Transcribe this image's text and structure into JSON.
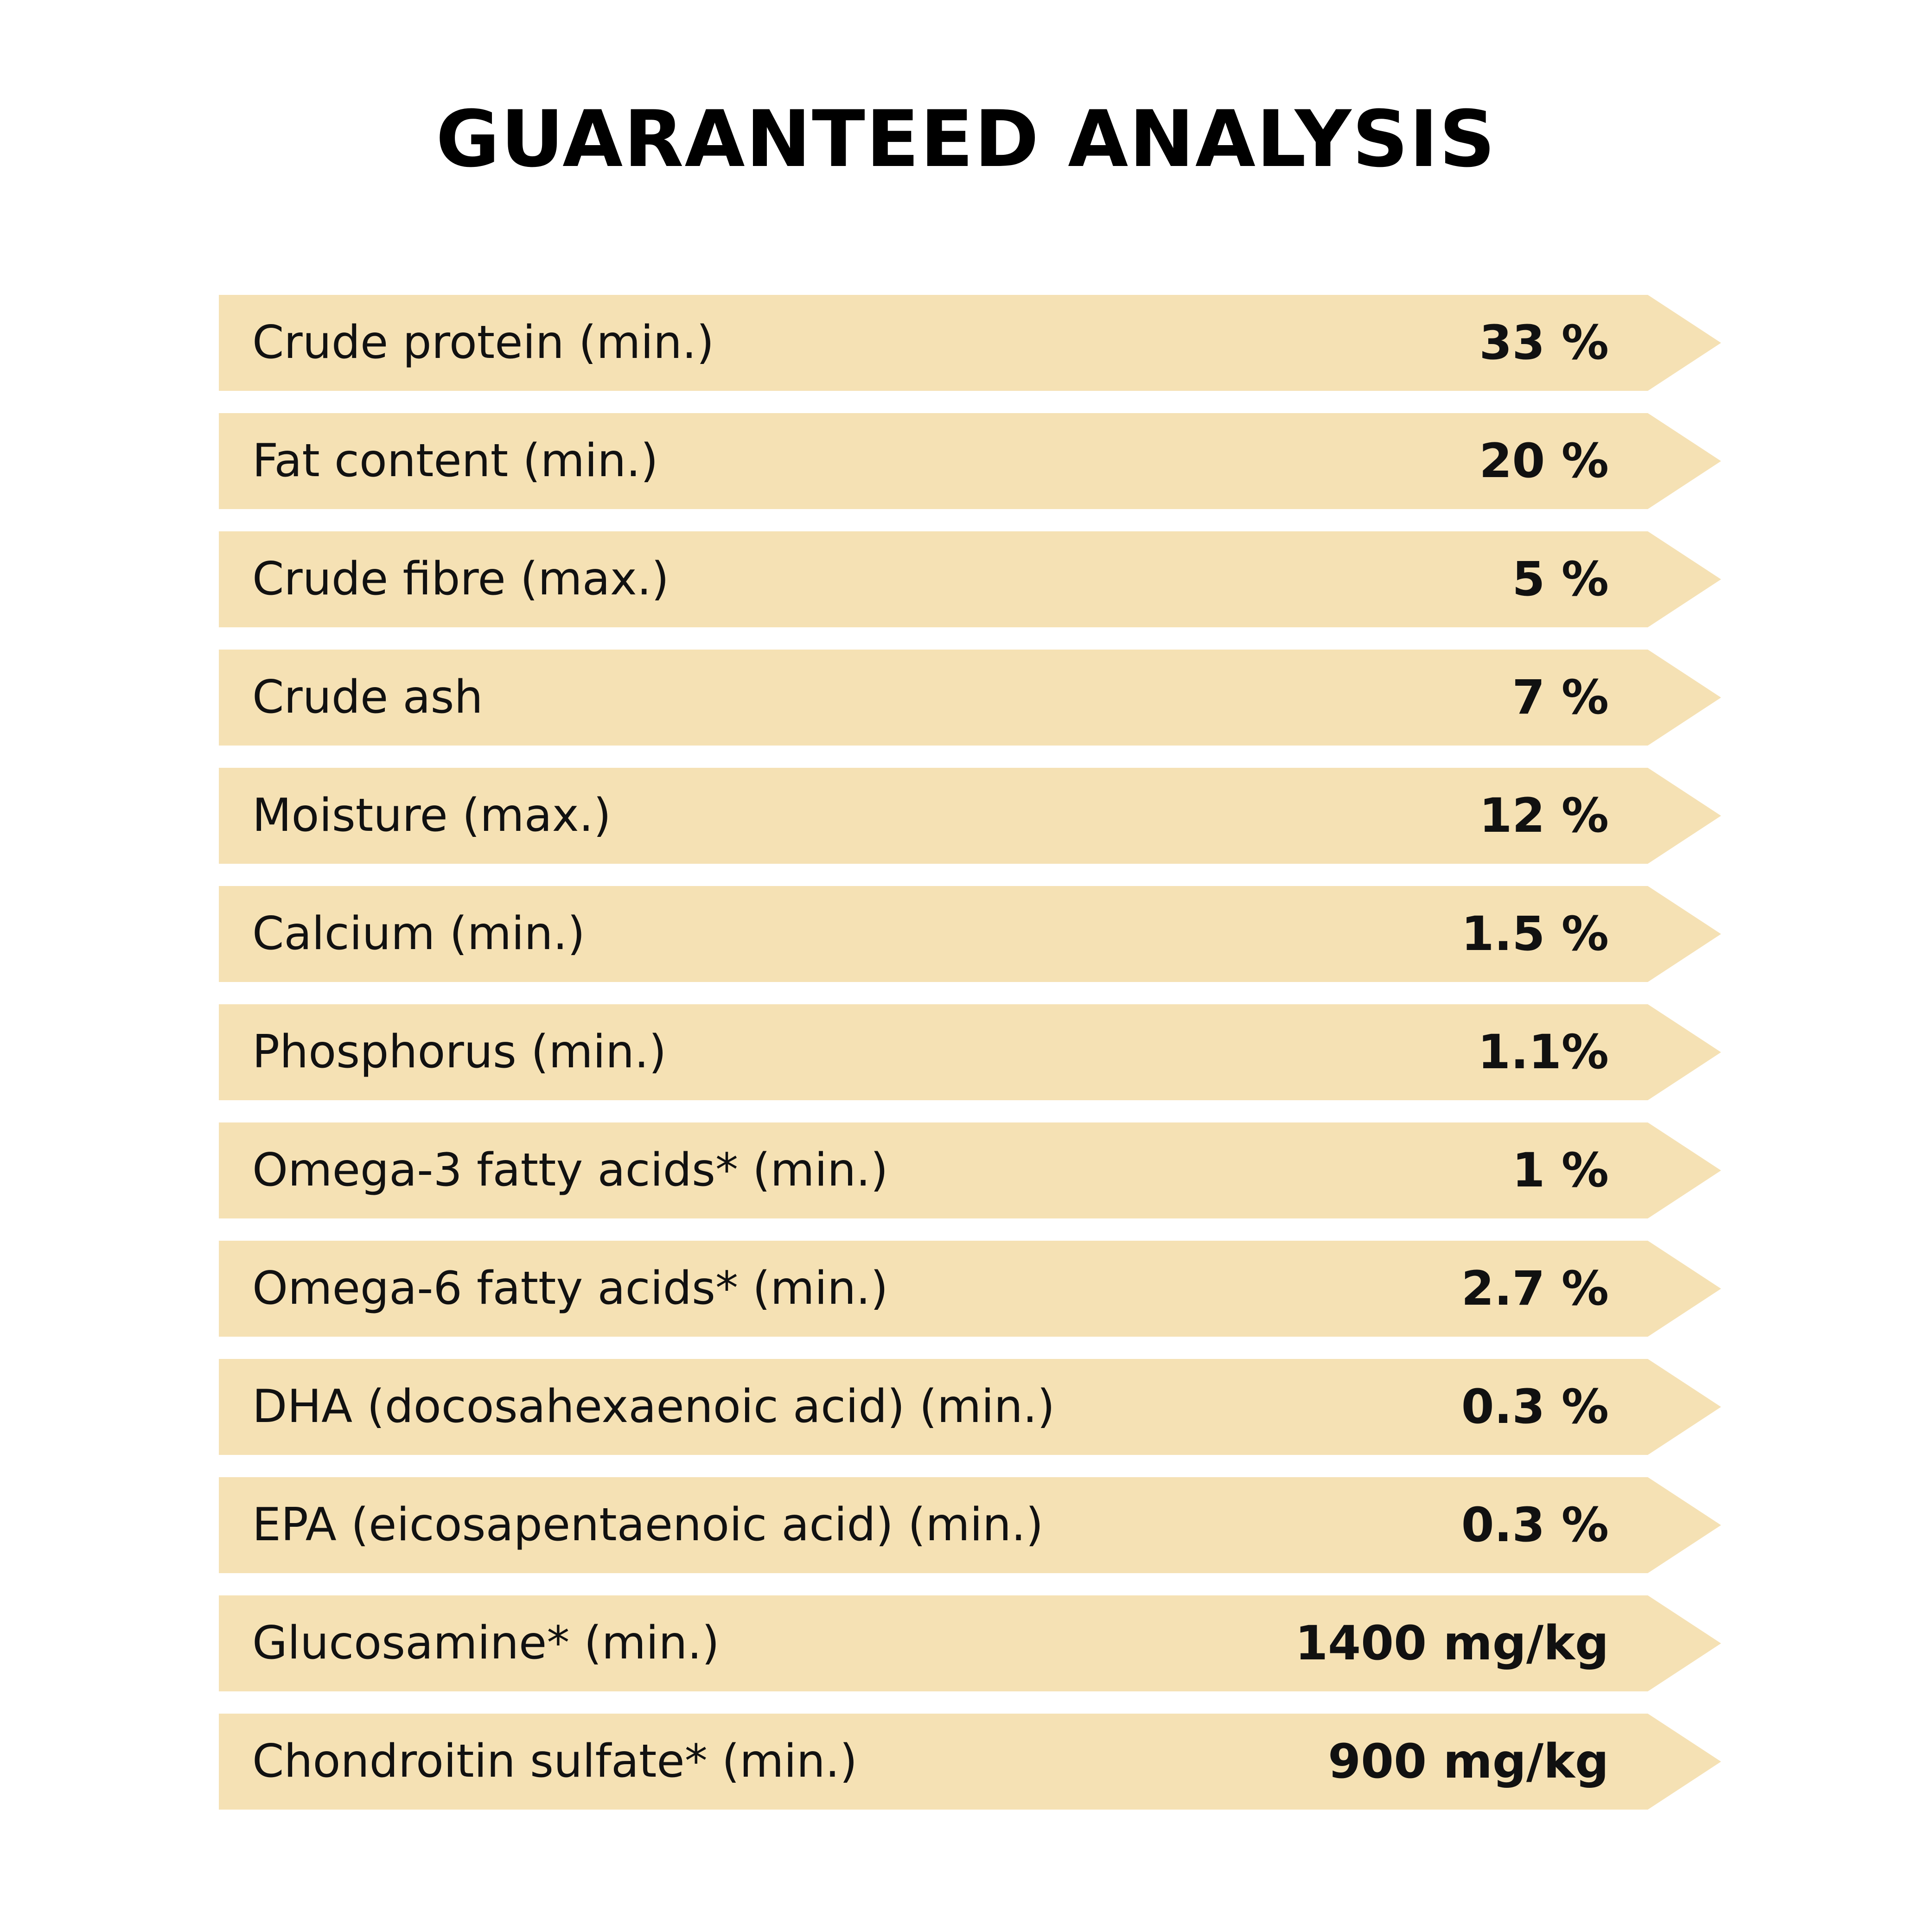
{
  "title": "GUARANTEED ANALYSIS",
  "colors": {
    "row_background": "#f5e1b4",
    "text": "#111111",
    "page_background": "#ffffff"
  },
  "rows": [
    {
      "label": "Crude protein (min.)",
      "value": "33 %"
    },
    {
      "label": "Fat content (min.)",
      "value": "20 %"
    },
    {
      "label": "Crude fibre (max.)",
      "value": "5 %"
    },
    {
      "label": "Crude ash",
      "value": "7 %"
    },
    {
      "label": "Moisture (max.)",
      "value": "12 %"
    },
    {
      "label": "Calcium (min.)",
      "value": "1.5 %"
    },
    {
      "label": "Phosphorus (min.)",
      "value": "1.1%"
    },
    {
      "label": "Omega-3 fatty acids* (min.)",
      "value": "1 %"
    },
    {
      "label": "Omega-6 fatty acids* (min.)",
      "value": "2.7 %"
    },
    {
      "label": "DHA (docosahexaenoic acid) (min.)",
      "value": "0.3 %"
    },
    {
      "label": "EPA (eicosapentaenoic acid) (min.)",
      "value": "0.3 %"
    },
    {
      "label": "Glucosamine* (min.)",
      "value": "1400 mg/kg"
    },
    {
      "label": "Chondroitin sulfate* (min.)",
      "value": "900 mg/kg"
    }
  ]
}
